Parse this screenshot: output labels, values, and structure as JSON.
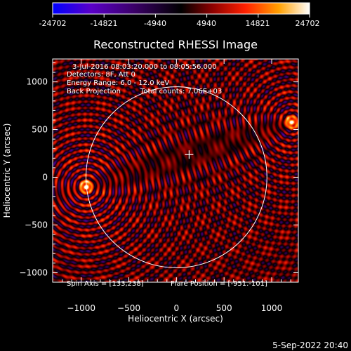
{
  "chart_data": {
    "type": "heatmap",
    "title": "Reconstructed RHESSI Image",
    "xlabel": "Heliocentric X (arcsec)",
    "ylabel": "Heliocentric Y (arcsec)",
    "xlim": [
      -1300,
      1280
    ],
    "ylim": [
      -1100,
      1240
    ],
    "x_ticks": [
      -1000,
      -500,
      0,
      500,
      1000
    ],
    "y_ticks": [
      1000,
      500,
      0,
      -500,
      -1000
    ],
    "x_tick_labels": [
      "−1000",
      "−500",
      "0",
      "500",
      "1000"
    ],
    "y_tick_labels": [
      "1000",
      "500",
      "0",
      "−500",
      "−1000"
    ],
    "colorbar": {
      "min": -24702,
      "max": 24702,
      "ticks": [
        -24702,
        -14821,
        -4940,
        4940,
        14821,
        24702
      ],
      "tick_labels": [
        "-24702",
        "-14821",
        "-4940",
        "4940",
        "14821",
        "24702"
      ],
      "colormap": [
        "#0000ff",
        "#5a00c8",
        "#3a0066",
        "#000000",
        "#8b0000",
        "#ff2000",
        "#ffa000",
        "#ffffff"
      ]
    },
    "annotations": [
      "3-Jul-2016 08:03:20.000 to 08:05:56.000",
      "Detectors: 8F, Att 0",
      "Energy Range: 6.0 - 12.0 keV",
      "Back Projection",
      "Total counts: 7.06E+03"
    ],
    "footer_left": "Spin Axis = [133,238]",
    "footer_right": "Flare Position = [-951.-101]",
    "solar_disk": {
      "center": [
        0,
        0
      ],
      "radius_arcsec": 950
    },
    "sources": [
      {
        "x": -951,
        "y": -101,
        "intensity": 1.0
      },
      {
        "x": 1210,
        "y": 580,
        "intensity": 0.85
      }
    ],
    "crosshair": {
      "x": 133,
      "y": 238
    },
    "grid": false,
    "timestamp": "5-Sep-2022 20:40"
  }
}
